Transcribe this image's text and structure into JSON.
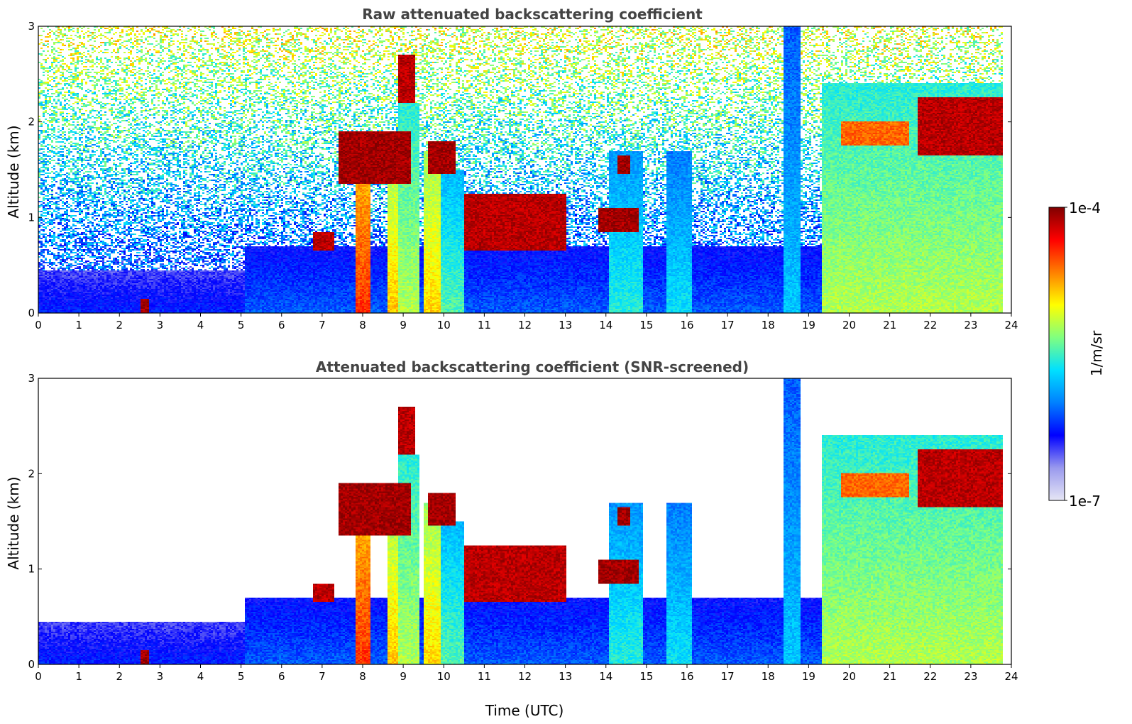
{
  "chart_data": [
    {
      "type": "heatmap",
      "title": "Raw attenuated backscattering coefficient",
      "xlabel": "",
      "ylabel": "Altitude (km)",
      "xlim": [
        0,
        24
      ],
      "ylim": [
        0,
        3
      ],
      "x_ticks": [
        "0",
        "1",
        "2",
        "3",
        "4",
        "5",
        "6",
        "7",
        "8",
        "9",
        "10",
        "11",
        "12",
        "13",
        "14",
        "15",
        "16",
        "17",
        "18",
        "19",
        "20",
        "21",
        "22",
        "23",
        "24"
      ],
      "y_ticks": [
        "0",
        "1",
        "2",
        "3"
      ],
      "data_end_time": 23.8,
      "background_noise": true,
      "features": [
        {
          "kind": "boundary_layer",
          "t0": 0,
          "t1": 5.1,
          "top_km": 0.45,
          "level": 0.25
        },
        {
          "kind": "boundary_layer",
          "t0": 5.1,
          "t1": 19.3,
          "top_km": 0.7,
          "level": 0.3
        },
        {
          "kind": "aerosol_column",
          "t0": 7.8,
          "t1": 8.2,
          "bottom_km": 0,
          "top_km": 1.55,
          "level": 0.85
        },
        {
          "kind": "aerosol_column",
          "t0": 8.6,
          "t1": 8.85,
          "bottom_km": 0,
          "top_km": 1.4,
          "level": 0.72
        },
        {
          "kind": "aerosol_column",
          "t0": 8.9,
          "t1": 9.4,
          "bottom_km": 0,
          "top_km": 2.2,
          "level": 0.6
        },
        {
          "kind": "aerosol_column",
          "t0": 9.5,
          "t1": 9.9,
          "bottom_km": 0,
          "top_km": 1.7,
          "level": 0.7
        },
        {
          "kind": "aerosol_column",
          "t0": 9.9,
          "t1": 10.5,
          "bottom_km": 0,
          "top_km": 1.5,
          "level": 0.52
        },
        {
          "kind": "aerosol_column",
          "t0": 14.1,
          "t1": 14.9,
          "bottom_km": 0,
          "top_km": 1.7,
          "level": 0.48
        },
        {
          "kind": "aerosol_column",
          "t0": 15.5,
          "t1": 16.1,
          "bottom_km": 0,
          "top_km": 1.7,
          "level": 0.45
        },
        {
          "kind": "aerosol_column",
          "t0": 18.4,
          "t1": 18.8,
          "bottom_km": 0,
          "top_km": 3.0,
          "level": 0.42
        },
        {
          "kind": "aerosol_layer",
          "t0": 19.3,
          "t1": 23.8,
          "bottom_km": 0,
          "top_km": 2.4,
          "level": 0.6
        },
        {
          "kind": "cloud_layer",
          "t0": 19.8,
          "t1": 21.5,
          "bottom_km": 1.75,
          "top_km": 2.0,
          "level": 0.8
        },
        {
          "kind": "cloud_layer",
          "t0": 21.7,
          "t1": 23.8,
          "bottom_km": 1.65,
          "top_km": 2.25,
          "level": 0.95
        },
        {
          "kind": "cloud_layer",
          "t0": 6.8,
          "t1": 7.3,
          "bottom_km": 0.65,
          "top_km": 0.85,
          "level": 0.95
        },
        {
          "kind": "cloud_layer",
          "t0": 7.4,
          "t1": 9.2,
          "bottom_km": 1.35,
          "top_km": 1.9,
          "level": 0.97
        },
        {
          "kind": "cloud_layer",
          "t0": 8.9,
          "t1": 9.3,
          "bottom_km": 2.2,
          "top_km": 2.7,
          "level": 0.95
        },
        {
          "kind": "cloud_layer",
          "t0": 9.6,
          "t1": 10.3,
          "bottom_km": 1.45,
          "top_km": 1.8,
          "level": 0.97
        },
        {
          "kind": "cloud_layer",
          "t0": 10.5,
          "t1": 13.0,
          "bottom_km": 0.65,
          "top_km": 1.25,
          "level": 0.95
        },
        {
          "kind": "cloud_layer",
          "t0": 13.8,
          "t1": 14.8,
          "bottom_km": 0.85,
          "top_km": 1.1,
          "level": 0.97
        },
        {
          "kind": "cloud_layer",
          "t0": 14.3,
          "t1": 14.6,
          "bottom_km": 1.45,
          "top_km": 1.65,
          "level": 0.97
        },
        {
          "kind": "cloud_layer",
          "t0": 2.5,
          "t1": 2.75,
          "bottom_km": 0,
          "top_km": 0.15,
          "level": 0.97
        }
      ]
    },
    {
      "type": "heatmap",
      "title": "Attenuated backscattering coefficient (SNR-screened)",
      "xlabel": "Time (UTC)",
      "ylabel": "Altitude (km)",
      "xlim": [
        0,
        24
      ],
      "ylim": [
        0,
        3
      ],
      "x_ticks": [
        "0",
        "1",
        "2",
        "3",
        "4",
        "5",
        "6",
        "7",
        "8",
        "9",
        "10",
        "11",
        "12",
        "13",
        "14",
        "15",
        "16",
        "17",
        "18",
        "19",
        "20",
        "21",
        "22",
        "23",
        "24"
      ],
      "y_ticks": [
        "0",
        "1",
        "2",
        "3"
      ],
      "data_end_time": 23.8,
      "background_noise": false,
      "features": "same as raw panel, noise removed above signal"
    }
  ],
  "colorbar": {
    "label": "1/m/sr",
    "max_label": "1e-4",
    "min_label": "1e-7",
    "colormap": "jet",
    "colors": [
      "#e6e6f5",
      "#9999ee",
      "#0000ff",
      "#0080ff",
      "#00e0ff",
      "#80ff80",
      "#ffff00",
      "#ff8000",
      "#ff0000",
      "#800000"
    ]
  }
}
